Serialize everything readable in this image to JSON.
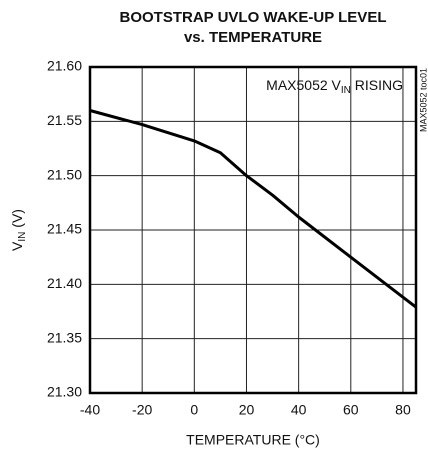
{
  "chart_data": {
    "type": "line",
    "title": [
      "BOOTSTRAP UVLO WAKE-UP LEVEL",
      "vs. TEMPERATURE"
    ],
    "annotation": {
      "main": "MAX5052 V",
      "sub": "IN",
      "tail": " RISING"
    },
    "side_note": "MAX5052 toc01",
    "x_label": "TEMPERATURE (°C)",
    "y_label": {
      "main": "V",
      "sub": "IN",
      "tail": " (V)"
    },
    "x": [
      -40,
      -20,
      0,
      10,
      20,
      30,
      40,
      60,
      85
    ],
    "series": [
      {
        "name": "MAX5052 VIN RISING",
        "color": "#000000",
        "values": [
          21.56,
          21.547,
          21.532,
          21.521,
          21.5,
          21.482,
          21.462,
          21.425,
          21.379
        ]
      }
    ],
    "xlim": [
      -40,
      85
    ],
    "xticks": [
      -40,
      -20,
      0,
      20,
      40,
      60,
      80
    ],
    "ylim": [
      21.3,
      21.6
    ],
    "yticks": [
      {
        "value": 21.3,
        "label": "21.30"
      },
      21.35,
      {
        "value": 21.4,
        "label": "21.40"
      },
      21.45,
      {
        "value": 21.5,
        "label": "21.50"
      },
      21.55,
      {
        "value": 21.6,
        "label": "21.60"
      }
    ],
    "grid": true
  }
}
